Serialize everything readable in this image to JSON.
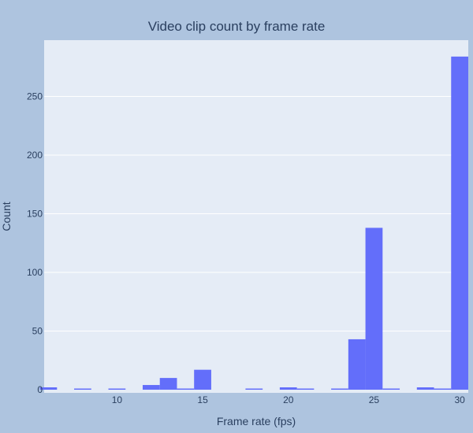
{
  "chart_data": {
    "type": "bar",
    "title": "Video clip count by frame rate",
    "xlabel": "Frame rate (fps)",
    "ylabel": "Count",
    "xlim": [
      5.75,
      30.5
    ],
    "ylim": [
      0,
      298
    ],
    "bin_width": 1,
    "x_ticks": [
      10,
      15,
      20,
      25,
      30
    ],
    "y_ticks": [
      0,
      50,
      100,
      150,
      200,
      250
    ],
    "grid": true,
    "legend": "none",
    "colors": {
      "paper": "#aec4df",
      "plot_bg": "#e5ecf6",
      "bar": "#636efa",
      "grid": "#ffffff",
      "text": "#2a3f5f"
    },
    "bins": [
      {
        "x": 6,
        "count": 2
      },
      {
        "x": 8,
        "count": 1
      },
      {
        "x": 10,
        "count": 1
      },
      {
        "x": 12,
        "count": 4
      },
      {
        "x": 13,
        "count": 10
      },
      {
        "x": 14,
        "count": 1
      },
      {
        "x": 15,
        "count": 17
      },
      {
        "x": 18,
        "count": 1
      },
      {
        "x": 20,
        "count": 2
      },
      {
        "x": 21,
        "count": 1
      },
      {
        "x": 23,
        "count": 1
      },
      {
        "x": 24,
        "count": 43
      },
      {
        "x": 25,
        "count": 138
      },
      {
        "x": 26,
        "count": 1
      },
      {
        "x": 28,
        "count": 2
      },
      {
        "x": 29,
        "count": 1
      },
      {
        "x": 30,
        "count": 284
      }
    ]
  }
}
